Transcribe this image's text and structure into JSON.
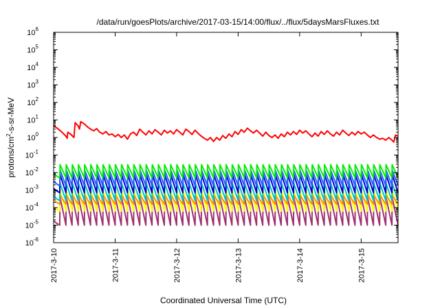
{
  "chart_data": {
    "type": "line",
    "title": "/data/run/goesPlots/archive/2017-03-15/14:00/flux/../flux/5daysMarsFluxes.txt",
    "xlabel": "Coordinated Universal Time (UTC)",
    "ylabel_parts": {
      "pre": "protons/cm",
      "sup": "2",
      "post": "-s-sr-MeV"
    },
    "yscale": "log",
    "ylim": [
      1e-06,
      1000000.0
    ],
    "xlim": [
      0,
      5.6
    ],
    "x_unit": "days since 2017-3-10 00:00 UTC",
    "grid": false,
    "legend": "none",
    "y_ticks": [
      {
        "exp": "-6",
        "v": -6
      },
      {
        "exp": "-5",
        "v": -5
      },
      {
        "exp": "-4",
        "v": -4
      },
      {
        "exp": "-3",
        "v": -3
      },
      {
        "exp": "-2",
        "v": -2
      },
      {
        "exp": "-1",
        "v": -1
      },
      {
        "exp": "0",
        "v": 0
      },
      {
        "exp": "1",
        "v": 1
      },
      {
        "exp": "2",
        "v": 2
      },
      {
        "exp": "3",
        "v": 3
      },
      {
        "exp": "4",
        "v": 4
      },
      {
        "exp": "5",
        "v": 5
      },
      {
        "exp": "6",
        "v": 6
      }
    ],
    "y_tick_base": "10",
    "x_ticks": [
      {
        "label": "2017-3-10",
        "x": 0
      },
      {
        "label": "2017-3-11",
        "x": 1
      },
      {
        "label": "2017-3-12",
        "x": 2
      },
      {
        "label": "2017-3-13",
        "x": 3
      },
      {
        "label": "2017-3-14",
        "x": 4
      },
      {
        "label": "2017-3-15",
        "x": 5
      }
    ],
    "series": [
      {
        "color": "#ff0000",
        "points": [
          [
            0.0,
            5
          ],
          [
            0.05,
            3.5
          ],
          [
            0.1,
            2.6
          ],
          [
            0.15,
            1.8
          ],
          [
            0.2,
            1.2
          ],
          [
            0.22,
            0.9
          ],
          [
            0.23,
            2.0
          ],
          [
            0.28,
            1.5
          ],
          [
            0.33,
            1.0
          ],
          [
            0.35,
            7
          ],
          [
            0.4,
            4.5
          ],
          [
            0.42,
            3.0
          ],
          [
            0.44,
            8
          ],
          [
            0.5,
            6
          ],
          [
            0.55,
            4
          ],
          [
            0.6,
            3
          ],
          [
            0.65,
            2.4
          ],
          [
            0.7,
            3.2
          ],
          [
            0.75,
            2.0
          ],
          [
            0.8,
            1.6
          ],
          [
            0.85,
            2.2
          ],
          [
            0.9,
            1.4
          ],
          [
            0.95,
            1.6
          ],
          [
            1.0,
            1.1
          ],
          [
            1.05,
            1.5
          ],
          [
            1.1,
            1.0
          ],
          [
            1.15,
            1.4
          ],
          [
            1.2,
            0.8
          ],
          [
            1.25,
            1.6
          ],
          [
            1.3,
            2.0
          ],
          [
            1.35,
            1.3
          ],
          [
            1.4,
            3.0
          ],
          [
            1.45,
            2.0
          ],
          [
            1.5,
            1.4
          ],
          [
            1.55,
            2.4
          ],
          [
            1.6,
            1.6
          ],
          [
            1.65,
            2.8
          ],
          [
            1.7,
            2.0
          ],
          [
            1.75,
            1.4
          ],
          [
            1.8,
            2.6
          ],
          [
            1.85,
            1.8
          ],
          [
            1.9,
            2.4
          ],
          [
            1.95,
            1.6
          ],
          [
            2.0,
            2.8
          ],
          [
            2.05,
            2.0
          ],
          [
            2.1,
            1.4
          ],
          [
            2.15,
            3.0
          ],
          [
            2.2,
            2.2
          ],
          [
            2.25,
            1.5
          ],
          [
            2.3,
            2.6
          ],
          [
            2.35,
            1.7
          ],
          [
            2.4,
            1.2
          ],
          [
            2.45,
            0.9
          ],
          [
            2.5,
            0.7
          ],
          [
            2.55,
            1.0
          ],
          [
            2.6,
            0.6
          ],
          [
            2.65,
            1.0
          ],
          [
            2.7,
            0.7
          ],
          [
            2.75,
            1.3
          ],
          [
            2.8,
            0.9
          ],
          [
            2.85,
            1.6
          ],
          [
            2.9,
            1.1
          ],
          [
            2.95,
            2.2
          ],
          [
            3.0,
            1.5
          ],
          [
            3.05,
            2.8
          ],
          [
            3.1,
            2.0
          ],
          [
            3.15,
            3.4
          ],
          [
            3.2,
            2.4
          ],
          [
            3.25,
            1.8
          ],
          [
            3.3,
            2.6
          ],
          [
            3.35,
            1.8
          ],
          [
            3.4,
            1.2
          ],
          [
            3.45,
            2.0
          ],
          [
            3.5,
            1.3
          ],
          [
            3.55,
            1.0
          ],
          [
            3.6,
            1.4
          ],
          [
            3.65,
            0.9
          ],
          [
            3.7,
            1.6
          ],
          [
            3.75,
            1.1
          ],
          [
            3.8,
            2.0
          ],
          [
            3.85,
            1.4
          ],
          [
            3.9,
            2.2
          ],
          [
            3.95,
            1.5
          ],
          [
            4.0,
            2.6
          ],
          [
            4.05,
            1.8
          ],
          [
            4.1,
            2.4
          ],
          [
            4.15,
            1.6
          ],
          [
            4.2,
            1.1
          ],
          [
            4.25,
            1.8
          ],
          [
            4.3,
            1.2
          ],
          [
            4.35,
            2.2
          ],
          [
            4.4,
            1.5
          ],
          [
            4.45,
            2.4
          ],
          [
            4.5,
            1.6
          ],
          [
            4.55,
            1.2
          ],
          [
            4.6,
            2.0
          ],
          [
            4.65,
            1.4
          ],
          [
            4.7,
            2.6
          ],
          [
            4.75,
            1.8
          ],
          [
            4.8,
            1.3
          ],
          [
            4.85,
            2.0
          ],
          [
            4.9,
            1.4
          ],
          [
            4.95,
            2.2
          ],
          [
            5.0,
            1.6
          ],
          [
            5.05,
            2.0
          ],
          [
            5.1,
            1.4
          ],
          [
            5.15,
            1.0
          ],
          [
            5.2,
            1.4
          ],
          [
            5.25,
            1.0
          ],
          [
            5.3,
            0.8
          ],
          [
            5.35,
            0.9
          ],
          [
            5.4,
            0.7
          ],
          [
            5.45,
            1.0
          ],
          [
            5.5,
            0.7
          ],
          [
            5.53,
            0.55
          ],
          [
            5.56,
            1.4
          ],
          [
            5.6,
            1.2
          ]
        ]
      },
      {
        "color": "#00ee00",
        "pattern": {
          "top": -1.55,
          "bottom": -2.3,
          "period": 0.1,
          "start": 0.1,
          "end": 5.6
        }
      },
      {
        "color": "#2060ff",
        "pattern": {
          "top": -1.85,
          "bottom": -2.75,
          "period": 0.1,
          "start": 0.1,
          "end": 5.6
        }
      },
      {
        "color": "#0000cc",
        "pattern": {
          "top": -2.1,
          "bottom": -3.15,
          "period": 0.1,
          "start": 0.1,
          "end": 5.6
        }
      },
      {
        "color": "#00c0c0",
        "pattern": {
          "top": -2.6,
          "bottom": -3.6,
          "period": 0.1,
          "start": 0.1,
          "end": 5.6
        }
      },
      {
        "color": "#ff8c00",
        "pattern": {
          "top": -3.3,
          "bottom": -3.8,
          "period": 0.1,
          "start": 0.1,
          "end": 5.6
        }
      },
      {
        "color": "#ffff00",
        "pattern": {
          "top": -3.0,
          "bottom": -4.2,
          "period": 0.1,
          "start": 0.1,
          "end": 5.6
        }
      },
      {
        "color": "#a03070",
        "pattern": {
          "top": -3.4,
          "bottom": -5.0,
          "period": 0.1,
          "start": 0.1,
          "end": 5.6
        }
      }
    ]
  }
}
